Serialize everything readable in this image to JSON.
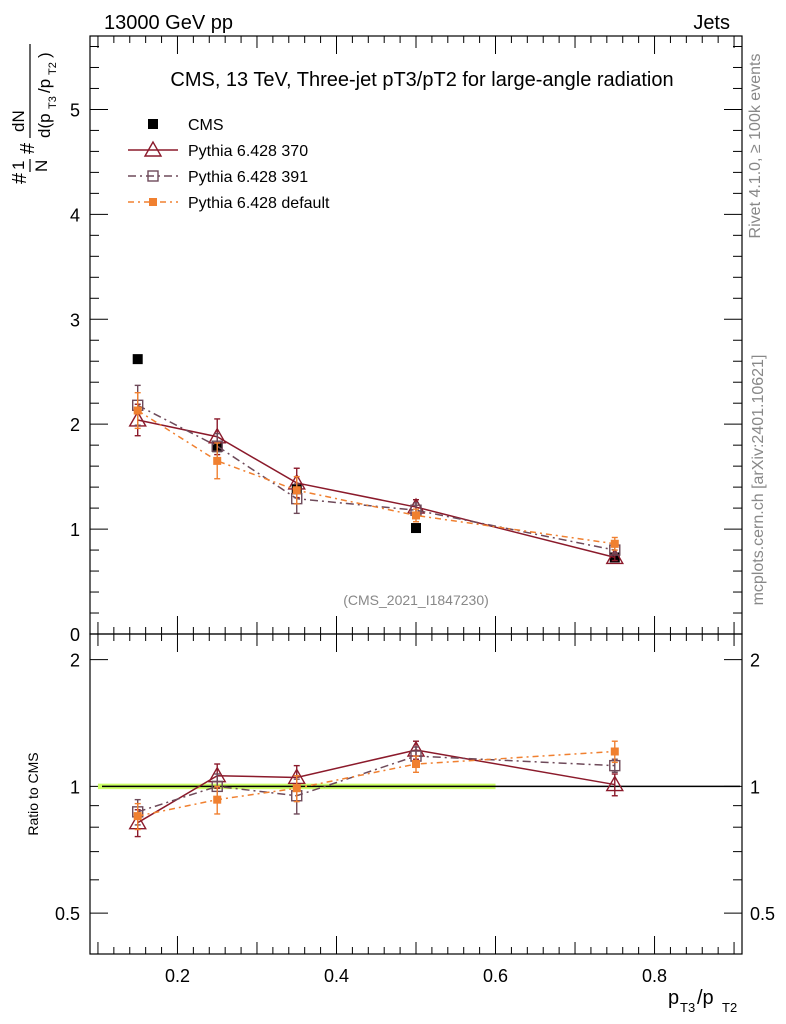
{
  "header": {
    "left": "13000 GeV pp",
    "right": "Jets"
  },
  "side_labels": {
    "rivet": "Rivet 4.1.0, ≥ 100k events",
    "mcplots": "mcplots.cern.ch [arXiv:2401.10621]"
  },
  "chart_data": [
    {
      "type": "scatter",
      "title": "CMS, 13 TeV, Three-jet pT3/pT2 for large-angle radiation",
      "analysis_id": "(CMS_2021_I1847230)",
      "ylabel": "#1/N #dN/d(pT3/pT2)",
      "xlim": [
        0.09,
        0.91
      ],
      "ylim": [
        0,
        5.7
      ],
      "yticks": [
        1,
        2,
        3,
        4,
        5
      ],
      "ytick_labels": [
        "1",
        "2",
        "3",
        "4",
        "5"
      ],
      "ytick_zero_label": "0",
      "legend_position": "top-left",
      "x": [
        0.15,
        0.25,
        0.35,
        0.5,
        0.75
      ],
      "series": [
        {
          "name": "CMS",
          "style": "data",
          "color": "#000000",
          "values": [
            2.62,
            1.78,
            1.38,
            1.01,
            0.73
          ]
        },
        {
          "name": "Pythia 6.428 370",
          "style": "solid-triangle",
          "color": "#8b1a2b",
          "values": [
            2.04,
            1.88,
            1.44,
            1.21,
            0.73
          ],
          "errors": [
            0.15,
            0.17,
            0.14,
            0.07,
            0.03
          ]
        },
        {
          "name": "Pythia 6.428 391",
          "style": "dashdot-square",
          "color": "#6e4a5a",
          "values": [
            2.18,
            1.79,
            1.29,
            1.18,
            0.8
          ],
          "errors": [
            0.19,
            0.12,
            0.14,
            0.07,
            0.03
          ]
        },
        {
          "name": "Pythia 6.428 default",
          "style": "dashdot-filled",
          "color": "#f08030",
          "values": [
            2.13,
            1.65,
            1.37,
            1.13,
            0.86
          ],
          "errors": [
            0.17,
            0.17,
            0.13,
            0.06,
            0.06
          ]
        }
      ]
    },
    {
      "type": "scatter",
      "title": "Ratio to CMS",
      "xlabel": "pT3/pT2",
      "ylabel": "Ratio to CMS",
      "xlim": [
        0.09,
        0.91
      ],
      "ylim": [
        0.4,
        2.3
      ],
      "yscale": "log",
      "xticks": [
        0.2,
        0.4,
        0.6,
        0.8
      ],
      "xtick_labels": [
        "0.2",
        "0.4",
        "0.6",
        "0.8"
      ],
      "yticks": [
        0.5,
        1,
        2
      ],
      "ytick_labels": [
        "0.5",
        "1",
        "2"
      ],
      "reference_band": {
        "x_range": [
          0.1,
          0.6
        ],
        "halfwidth": 0.015,
        "color": "#ccff66"
      },
      "x": [
        0.15,
        0.25,
        0.35,
        0.5,
        0.75
      ],
      "series": [
        {
          "name": "Pythia 6.428 370",
          "style": "solid-triangle",
          "color": "#8b1a2b",
          "values": [
            0.82,
            1.06,
            1.05,
            1.22,
            1.01
          ],
          "errors": [
            0.06,
            0.07,
            0.07,
            0.06,
            0.06
          ]
        },
        {
          "name": "Pythia 6.428 391",
          "style": "dashdot-square",
          "color": "#6e4a5a",
          "values": [
            0.87,
            1.0,
            0.95,
            1.18,
            1.12
          ],
          "errors": [
            0.06,
            0.07,
            0.09,
            0.06,
            0.04
          ]
        },
        {
          "name": "Pythia 6.428 default",
          "style": "dashdot-filled",
          "color": "#f08030",
          "values": [
            0.85,
            0.93,
            0.99,
            1.13,
            1.21
          ],
          "errors": [
            0.06,
            0.07,
            0.07,
            0.05,
            0.07
          ]
        }
      ]
    }
  ]
}
